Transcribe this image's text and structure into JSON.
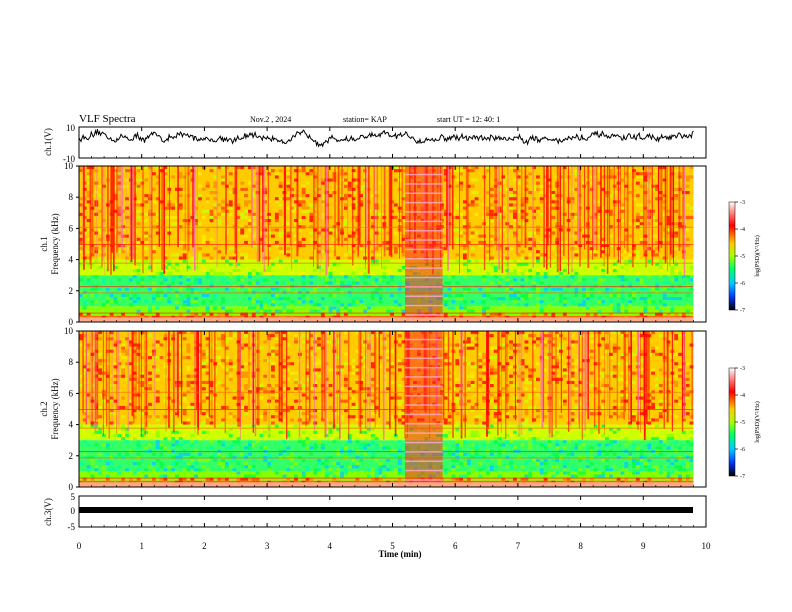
{
  "header": {
    "title": "VLF Spectra",
    "date": "Nov.2 , 2024",
    "station": "station= KAP",
    "start": "start UT = 12: 40: 1"
  },
  "chart_data": [
    {
      "type": "line",
      "name": "ch1-waveform",
      "ylabel": "ch.1(V)",
      "ylim": [
        -10,
        10
      ],
      "yticks": [
        "10",
        "-10"
      ],
      "x_range_min": [
        0,
        9.8
      ],
      "approx_level": 3,
      "fluctuation": 3
    },
    {
      "type": "heatmap",
      "name": "ch1-spectrogram",
      "ylabel_top": "ch.1",
      "ylabel": "Frequency (kHz)",
      "ylim": [
        0,
        10
      ],
      "yticks": [
        "0",
        "2",
        "4",
        "6",
        "8",
        "10"
      ],
      "x_range_min": [
        0,
        9.8
      ],
      "bright_segment_min": [
        5.2,
        5.8
      ],
      "colorbar": {
        "label": "log(PSD)(V²/Hz)",
        "ticks": [
          "-3",
          "-4",
          "-5",
          "-6",
          "-7"
        ],
        "range": [
          -7,
          -3
        ]
      }
    },
    {
      "type": "heatmap",
      "name": "ch2-spectrogram",
      "ylabel_top": "ch.2",
      "ylabel": "Frequency (kHz)",
      "ylim": [
        0,
        10
      ],
      "yticks": [
        "0",
        "2",
        "4",
        "6",
        "8",
        "10"
      ],
      "x_range_min": [
        0,
        9.8
      ],
      "bright_segment_min": [
        5.2,
        5.8
      ],
      "colorbar": {
        "label": "log(PSD)(V²/Hz)",
        "ticks": [
          "-3",
          "-4",
          "-5",
          "-6",
          "-7"
        ],
        "range": [
          -7,
          -3
        ]
      }
    },
    {
      "type": "line",
      "name": "ch3-waveform",
      "ylabel": "ch.3(V)",
      "ylim": [
        -5,
        5
      ],
      "yticks": [
        "5",
        "0",
        "-5"
      ],
      "x_range_min": [
        0,
        9.8
      ],
      "approx_level": 0
    }
  ],
  "xaxis": {
    "label": "Time (min)",
    "ticks": [
      "0",
      "1",
      "2",
      "3",
      "4",
      "5",
      "6",
      "7",
      "8",
      "9",
      "10"
    ],
    "range": [
      0,
      10
    ]
  }
}
